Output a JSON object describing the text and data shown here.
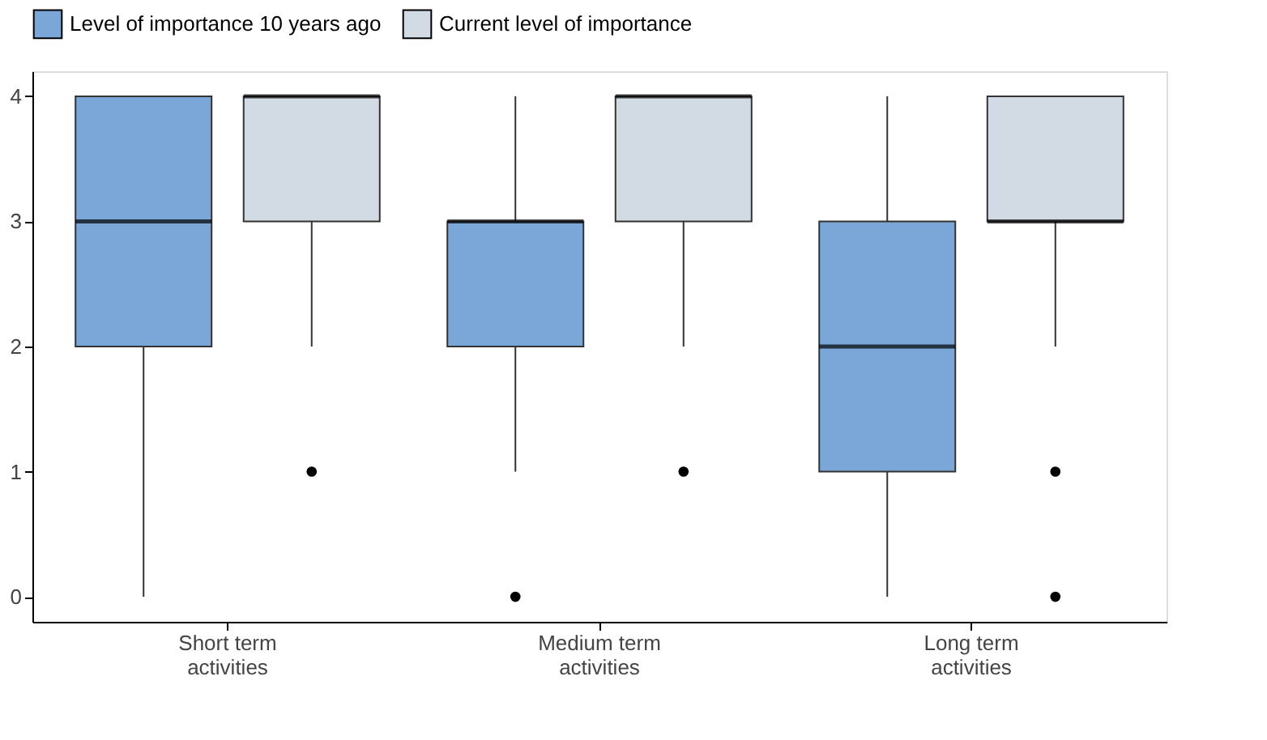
{
  "chart_data": {
    "type": "box",
    "categories": [
      "Short term activities",
      "Medium term activities",
      "Long term activities"
    ],
    "series": [
      {
        "name": "Level of importance 10 years ago",
        "color": "#7aa6d8",
        "boxes": [
          {
            "low": 0,
            "q1": 2,
            "median": 3,
            "q3": 4,
            "high": 4
          },
          {
            "low": 1,
            "q1": 2,
            "median": 3,
            "q3": 3,
            "high": 4,
            "outliers": [
              0
            ]
          },
          {
            "low": 0,
            "q1": 1,
            "median": 2,
            "q3": 3,
            "high": 4
          }
        ]
      },
      {
        "name": "Current level of importance",
        "color": "#d2dbe4",
        "boxes": [
          {
            "low": 2,
            "q1": 3,
            "median": 4,
            "q3": 4,
            "high": 4,
            "outliers": [
              1
            ]
          },
          {
            "low": 2,
            "q1": 3,
            "median": 4,
            "q3": 4,
            "high": 4,
            "outliers": [
              1
            ]
          },
          {
            "low": 2,
            "q1": 3,
            "median": 3,
            "q3": 4,
            "high": 4,
            "outliers": [
              1,
              0
            ]
          }
        ]
      }
    ],
    "ylim": [
      -0.2,
      4.2
    ],
    "yticks": [
      0,
      1,
      2,
      3,
      4
    ],
    "grid": false,
    "legend": "top"
  }
}
